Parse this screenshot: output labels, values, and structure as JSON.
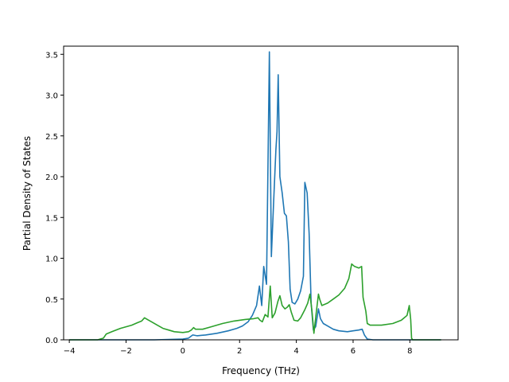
{
  "chart_data": {
    "type": "line",
    "title": "",
    "xlabel": "Frequency (THz)",
    "ylabel": "Partial Density of States",
    "xlim": [
      -4.2,
      9.7
    ],
    "ylim": [
      0,
      3.6
    ],
    "x_ticks": [
      -4,
      -2,
      0,
      2,
      4,
      6,
      8
    ],
    "x_tick_labels": [
      "−4",
      "−2",
      "0",
      "2",
      "4",
      "6",
      "8"
    ],
    "y_ticks": [
      0,
      0.5,
      1.0,
      1.5,
      2.0,
      2.5,
      3.0,
      3.5
    ],
    "y_tick_labels": [
      "0.0",
      "0.5",
      "1.0",
      "1.5",
      "2.0",
      "2.5",
      "3.0",
      "3.5"
    ],
    "grid": false,
    "legend": "none",
    "series": [
      {
        "color": "#1f77b4",
        "points": [
          [
            -4.0,
            0.0
          ],
          [
            -2.0,
            0.0
          ],
          [
            -1.0,
            0.0
          ],
          [
            0.0,
            0.01
          ],
          [
            0.2,
            0.02
          ],
          [
            0.35,
            0.06
          ],
          [
            0.5,
            0.05
          ],
          [
            0.8,
            0.06
          ],
          [
            1.2,
            0.08
          ],
          [
            1.6,
            0.11
          ],
          [
            1.9,
            0.14
          ],
          [
            2.1,
            0.17
          ],
          [
            2.3,
            0.22
          ],
          [
            2.45,
            0.3
          ],
          [
            2.6,
            0.42
          ],
          [
            2.7,
            0.66
          ],
          [
            2.78,
            0.42
          ],
          [
            2.85,
            0.9
          ],
          [
            2.95,
            0.68
          ],
          [
            3.05,
            3.53
          ],
          [
            3.12,
            1.02
          ],
          [
            3.2,
            1.7
          ],
          [
            3.28,
            2.33
          ],
          [
            3.32,
            2.55
          ],
          [
            3.36,
            3.25
          ],
          [
            3.42,
            2.0
          ],
          [
            3.5,
            1.8
          ],
          [
            3.58,
            1.55
          ],
          [
            3.65,
            1.52
          ],
          [
            3.72,
            1.2
          ],
          [
            3.78,
            0.62
          ],
          [
            3.85,
            0.46
          ],
          [
            3.95,
            0.44
          ],
          [
            4.05,
            0.5
          ],
          [
            4.15,
            0.6
          ],
          [
            4.25,
            0.78
          ],
          [
            4.3,
            1.93
          ],
          [
            4.38,
            1.8
          ],
          [
            4.45,
            1.3
          ],
          [
            4.52,
            0.45
          ],
          [
            4.6,
            0.12
          ],
          [
            4.68,
            0.16
          ],
          [
            4.78,
            0.38
          ],
          [
            4.85,
            0.26
          ],
          [
            4.95,
            0.2
          ],
          [
            5.1,
            0.17
          ],
          [
            5.3,
            0.13
          ],
          [
            5.5,
            0.11
          ],
          [
            5.8,
            0.1
          ],
          [
            6.0,
            0.11
          ],
          [
            6.2,
            0.12
          ],
          [
            6.32,
            0.13
          ],
          [
            6.4,
            0.06
          ],
          [
            6.5,
            0.01
          ],
          [
            6.7,
            0.0
          ],
          [
            8.0,
            0.0
          ],
          [
            9.1,
            0.0
          ]
        ]
      },
      {
        "color": "#2ca02c",
        "points": [
          [
            -4.0,
            0.0
          ],
          [
            -3.0,
            0.0
          ],
          [
            -2.8,
            0.02
          ],
          [
            -2.7,
            0.07
          ],
          [
            -2.5,
            0.1
          ],
          [
            -2.2,
            0.14
          ],
          [
            -2.0,
            0.16
          ],
          [
            -1.8,
            0.18
          ],
          [
            -1.6,
            0.21
          ],
          [
            -1.45,
            0.23
          ],
          [
            -1.35,
            0.27
          ],
          [
            -1.25,
            0.25
          ],
          [
            -1.1,
            0.22
          ],
          [
            -0.9,
            0.18
          ],
          [
            -0.7,
            0.14
          ],
          [
            -0.5,
            0.12
          ],
          [
            -0.3,
            0.1
          ],
          [
            0.0,
            0.09
          ],
          [
            0.2,
            0.1
          ],
          [
            0.3,
            0.12
          ],
          [
            0.38,
            0.15
          ],
          [
            0.45,
            0.13
          ],
          [
            0.7,
            0.13
          ],
          [
            1.0,
            0.16
          ],
          [
            1.4,
            0.2
          ],
          [
            1.8,
            0.23
          ],
          [
            2.2,
            0.25
          ],
          [
            2.5,
            0.26
          ],
          [
            2.65,
            0.27
          ],
          [
            2.72,
            0.24
          ],
          [
            2.8,
            0.22
          ],
          [
            2.9,
            0.31
          ],
          [
            3.0,
            0.28
          ],
          [
            3.08,
            0.66
          ],
          [
            3.15,
            0.27
          ],
          [
            3.25,
            0.33
          ],
          [
            3.35,
            0.47
          ],
          [
            3.42,
            0.54
          ],
          [
            3.5,
            0.42
          ],
          [
            3.6,
            0.38
          ],
          [
            3.68,
            0.4
          ],
          [
            3.75,
            0.43
          ],
          [
            3.82,
            0.34
          ],
          [
            3.92,
            0.24
          ],
          [
            4.05,
            0.23
          ],
          [
            4.15,
            0.27
          ],
          [
            4.3,
            0.37
          ],
          [
            4.4,
            0.45
          ],
          [
            4.48,
            0.56
          ],
          [
            4.55,
            0.36
          ],
          [
            4.62,
            0.08
          ],
          [
            4.7,
            0.33
          ],
          [
            4.78,
            0.56
          ],
          [
            4.82,
            0.5
          ],
          [
            4.9,
            0.42
          ],
          [
            5.1,
            0.45
          ],
          [
            5.3,
            0.5
          ],
          [
            5.5,
            0.55
          ],
          [
            5.7,
            0.63
          ],
          [
            5.85,
            0.75
          ],
          [
            5.95,
            0.93
          ],
          [
            6.05,
            0.9
          ],
          [
            6.2,
            0.88
          ],
          [
            6.3,
            0.9
          ],
          [
            6.35,
            0.52
          ],
          [
            6.45,
            0.35
          ],
          [
            6.5,
            0.2
          ],
          [
            6.6,
            0.18
          ],
          [
            7.0,
            0.18
          ],
          [
            7.4,
            0.2
          ],
          [
            7.7,
            0.24
          ],
          [
            7.9,
            0.3
          ],
          [
            7.98,
            0.42
          ],
          [
            8.03,
            0.25
          ],
          [
            8.06,
            0.02
          ],
          [
            8.1,
            0.0
          ],
          [
            9.1,
            0.0
          ]
        ]
      }
    ]
  }
}
